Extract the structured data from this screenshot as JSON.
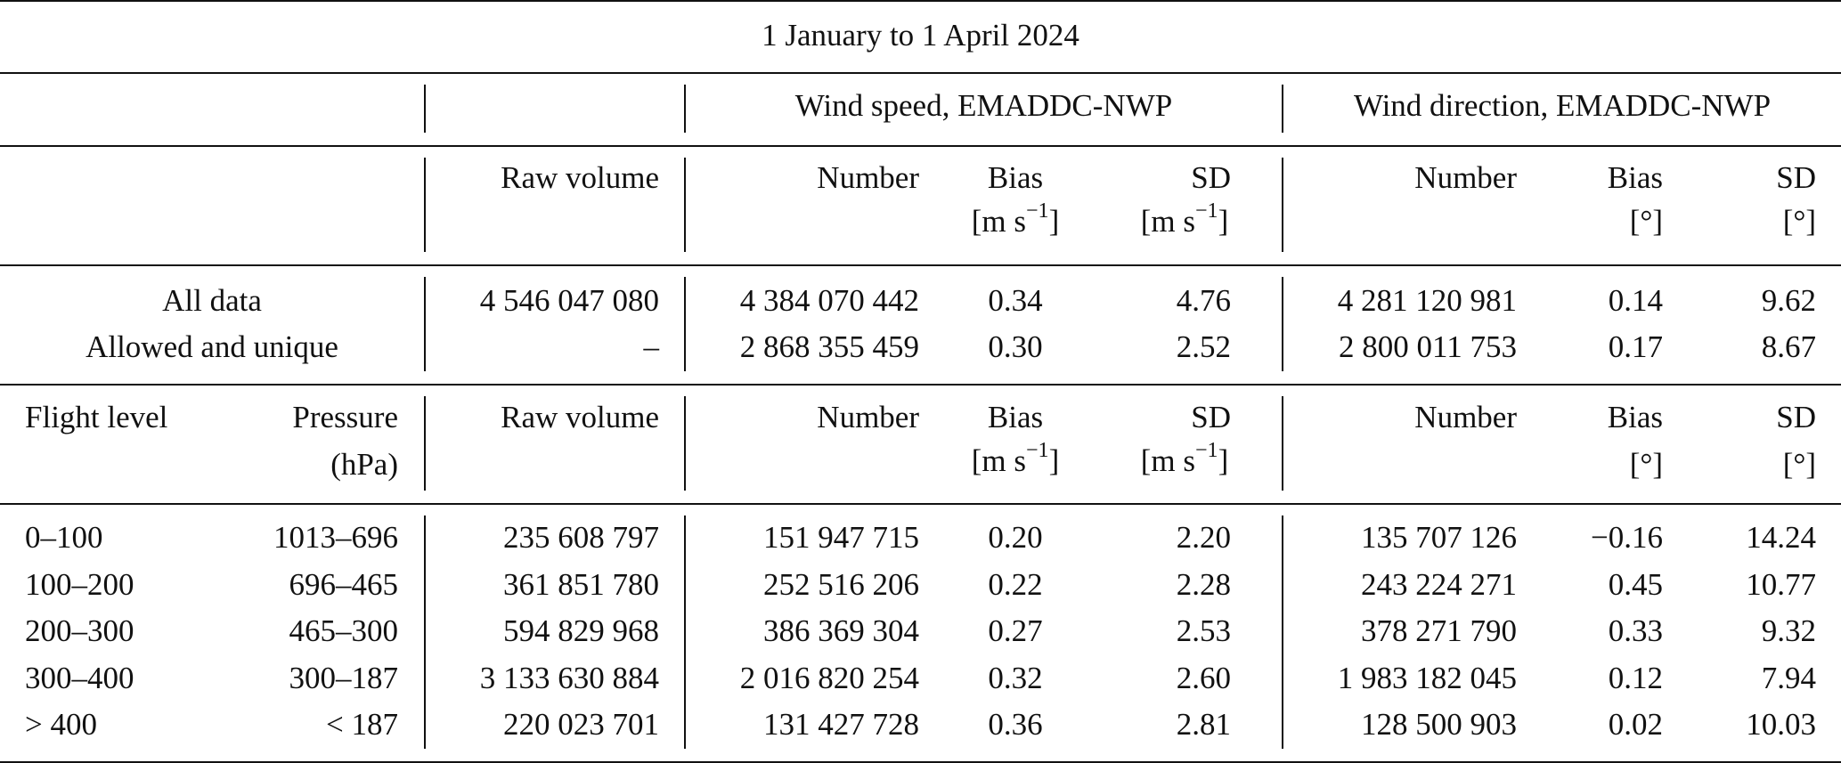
{
  "title": "1 January to 1 April 2024",
  "group_headers": {
    "wind_speed": "Wind speed, EMADDC-NWP",
    "wind_direction": "Wind direction, EMADDC-NWP"
  },
  "column_headers": {
    "flight_level": "Flight level",
    "pressure": "Pressure",
    "pressure_unit": "(hPa)",
    "raw_volume": "Raw volume",
    "number": "Number",
    "bias": "Bias",
    "sd": "SD",
    "speed_unit": "[m s",
    "speed_unit_exp": "−1",
    "speed_unit_close": "]",
    "dir_unit": "[°]"
  },
  "summary_rows": [
    {
      "label": "All data",
      "raw": "4 546 047 080",
      "ws_n": "4 384 070 442",
      "ws_bias": "0.34",
      "ws_sd": "4.76",
      "wd_n": "4 281 120 981",
      "wd_bias": "0.14",
      "wd_sd": "9.62"
    },
    {
      "label": "Allowed and unique",
      "raw": "–",
      "ws_n": "2 868 355 459",
      "ws_bias": "0.30",
      "ws_sd": "2.52",
      "wd_n": "2 800 011 753",
      "wd_bias": "0.17",
      "wd_sd": "8.67"
    }
  ],
  "level_rows": [
    {
      "fl": "0–100",
      "p": "1013–696",
      "raw": "235 608 797",
      "ws_n": "151 947 715",
      "ws_bias": "0.20",
      "ws_sd": "2.20",
      "wd_n": "135 707 126",
      "wd_bias": "−0.16",
      "wd_sd": "14.24"
    },
    {
      "fl": "100–200",
      "p": "696–465",
      "raw": "361 851 780",
      "ws_n": "252 516 206",
      "ws_bias": "0.22",
      "ws_sd": "2.28",
      "wd_n": "243 224 271",
      "wd_bias": "0.45",
      "wd_sd": "10.77"
    },
    {
      "fl": "200–300",
      "p": "465–300",
      "raw": "594 829 968",
      "ws_n": "386 369 304",
      "ws_bias": "0.27",
      "ws_sd": "2.53",
      "wd_n": "378 271 790",
      "wd_bias": "0.33",
      "wd_sd": "9.32"
    },
    {
      "fl": "300–400",
      "p": "300–187",
      "raw": "3 133 630 884",
      "ws_n": "2 016 820 254",
      "ws_bias": "0.32",
      "ws_sd": "2.60",
      "wd_n": "1 983 182 045",
      "wd_bias": "0.12",
      "wd_sd": "7.94"
    },
    {
      "fl": "> 400",
      "p": "< 187",
      "raw": "220 023 701",
      "ws_n": "131 427 728",
      "ws_bias": "0.36",
      "ws_sd": "2.81",
      "wd_n": "128 500 903",
      "wd_bias": "0.02",
      "wd_sd": "10.03"
    }
  ]
}
